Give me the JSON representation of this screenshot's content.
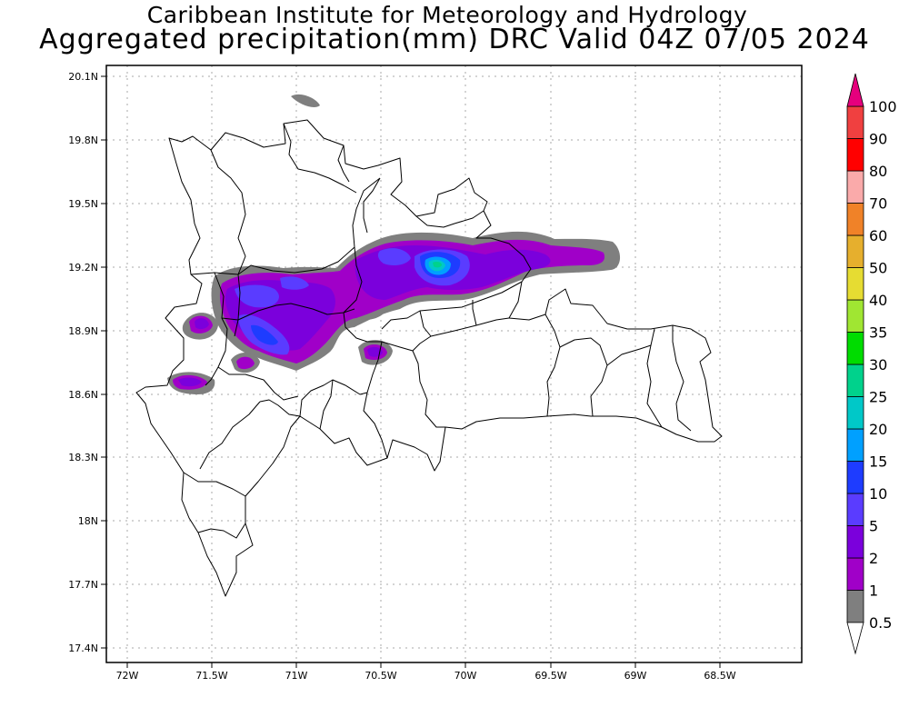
{
  "header": {
    "institution": "Caribbean Institute for Meteorology and Hydrology",
    "product_title": "Aggregated precipitation(mm) DRC Valid 04Z 07/05 2024"
  },
  "map": {
    "lon_ticks": [
      "72W",
      "71.5W",
      "71W",
      "70.5W",
      "70W",
      "69.5W",
      "69W",
      "68.5W"
    ],
    "lat_ticks": [
      "20.1N",
      "19.8N",
      "19.5N",
      "19.2N",
      "18.9N",
      "18.6N",
      "18.3N",
      "18N",
      "17.7N",
      "17.4N"
    ],
    "lon_range": [
      -72.05,
      -68.2
    ],
    "lat_range": [
      17.35,
      20.15
    ],
    "grid": "dotted"
  },
  "colorbar": {
    "levels": [
      "0.5",
      "1",
      "2",
      "5",
      "10",
      "15",
      "20",
      "25",
      "30",
      "35",
      "40",
      "50",
      "60",
      "70",
      "80",
      "90",
      "100"
    ],
    "colors": [
      "#7f7f7f",
      "#a000c8",
      "#7b00dc",
      "#5a3cff",
      "#1e3cff",
      "#00a0ff",
      "#00c8c8",
      "#00d28c",
      "#00dc00",
      "#a0e632",
      "#e6dc32",
      "#e6af2d",
      "#f08228",
      "#faaaaa",
      "#ff0000",
      "#f04040",
      "#e6007d"
    ]
  },
  "precip_icon": "precipitation-shading"
}
